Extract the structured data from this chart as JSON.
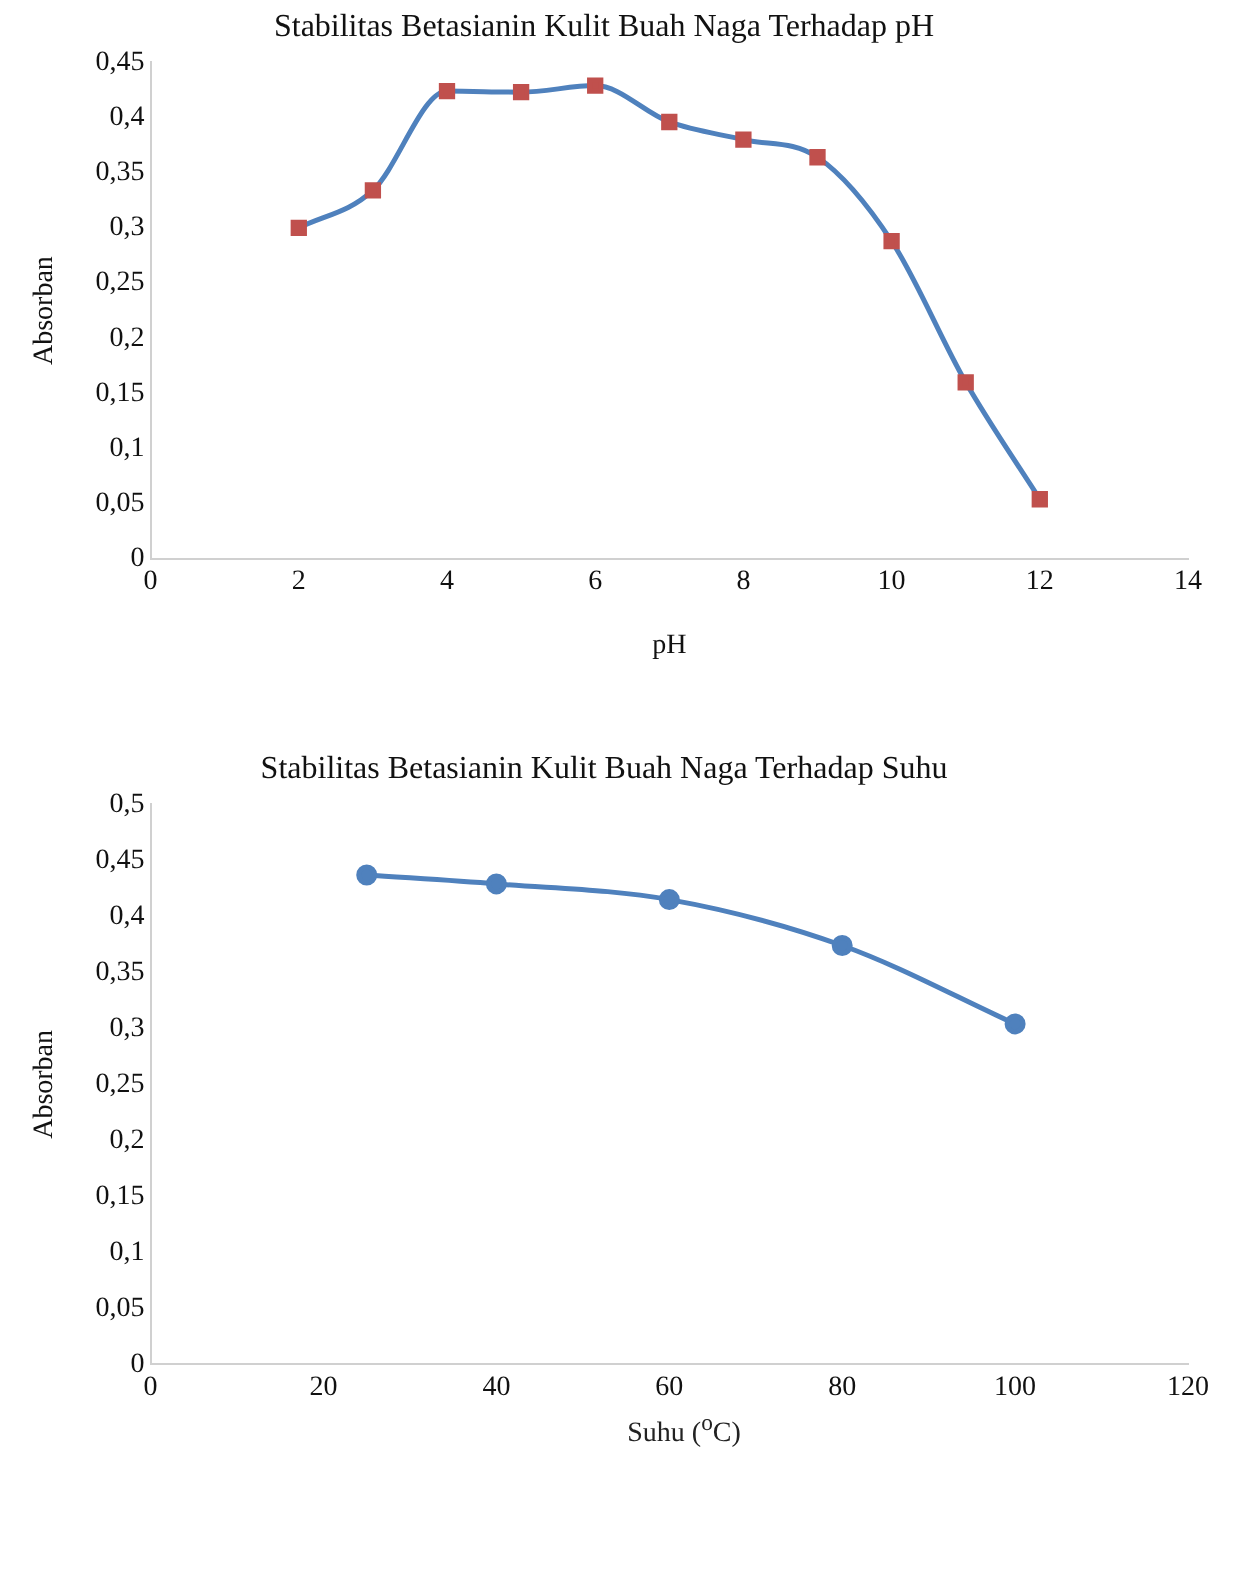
{
  "chart_data": [
    {
      "type": "line",
      "title": "Stabilitas Betasianin Kulit Buah Naga Terhadap pH",
      "xlabel": "pH",
      "ylabel": "Absorban",
      "marker": "square",
      "grid": false,
      "legend": false,
      "line_style": "solid",
      "xlim": [
        0,
        14
      ],
      "xticks": [
        0,
        2,
        4,
        6,
        8,
        10,
        12,
        14
      ],
      "ylim": [
        0,
        0.45
      ],
      "yticks": [
        0,
        {
          "value": 0.05,
          "label": "0,05"
        },
        {
          "value": 0.1,
          "label": "0,1"
        },
        {
          "value": 0.15,
          "label": "0,15"
        },
        {
          "value": 0.2,
          "label": "0,2"
        },
        {
          "value": 0.25,
          "label": "0,25"
        },
        {
          "value": 0.3,
          "label": "0,3"
        },
        {
          "value": 0.35,
          "label": "0,35"
        },
        {
          "value": 0.4,
          "label": "0,4"
        },
        {
          "value": 0.45,
          "label": "0,45"
        }
      ],
      "series": [
        {
          "color": "#4f81bd",
          "colors": [
            "#c0504d",
            "#c0504d",
            "#c0504d",
            "#c0504d",
            "#c0504d",
            "#c0504d",
            "#c0504d",
            "#c0504d",
            "#c0504d",
            "#c0504d",
            "#c0504d"
          ],
          "x": [
            2,
            3,
            4,
            5,
            6,
            7,
            8,
            9,
            10,
            11,
            12
          ],
          "values": [
            0.3,
            0.334,
            0.424,
            0.423,
            0.429,
            0.396,
            0.38,
            0.364,
            0.288,
            0.16,
            0.054
          ]
        }
      ]
    },
    {
      "type": "line",
      "title": "Stabilitas Betasianin Kulit Buah Naga Terhadap Suhu",
      "xlabel": "Suhu ($^{o}$C)",
      "ylabel": "Absorban",
      "marker": "circle",
      "grid": false,
      "legend": false,
      "line_style": "solid",
      "xlim": [
        0,
        120
      ],
      "xticks": [
        0,
        20,
        40,
        60,
        80,
        100,
        120
      ],
      "ylim": [
        0,
        0.5
      ],
      "yticks": [
        0,
        {
          "value": 0.05,
          "label": "0,05"
        },
        {
          "value": 0.1,
          "label": "0,1"
        },
        {
          "value": 0.15,
          "label": "0,15"
        },
        {
          "value": 0.2,
          "label": "0,2"
        },
        {
          "value": 0.25,
          "label": "0,25"
        },
        {
          "value": 0.3,
          "label": "0,3"
        },
        {
          "value": 0.35,
          "label": "0,35"
        },
        {
          "value": 0.4,
          "label": "0,4"
        },
        {
          "value": 0.45,
          "label": "0,45"
        },
        {
          "value": 0.5,
          "label": "0,5"
        }
      ],
      "series": [
        {
          "color": "#4f81bd",
          "x": [
            25,
            40,
            60,
            80,
            100
          ],
          "values": [
            0.437,
            0.429,
            0.415,
            0.374,
            0.304
          ]
        }
      ]
    }
  ]
}
